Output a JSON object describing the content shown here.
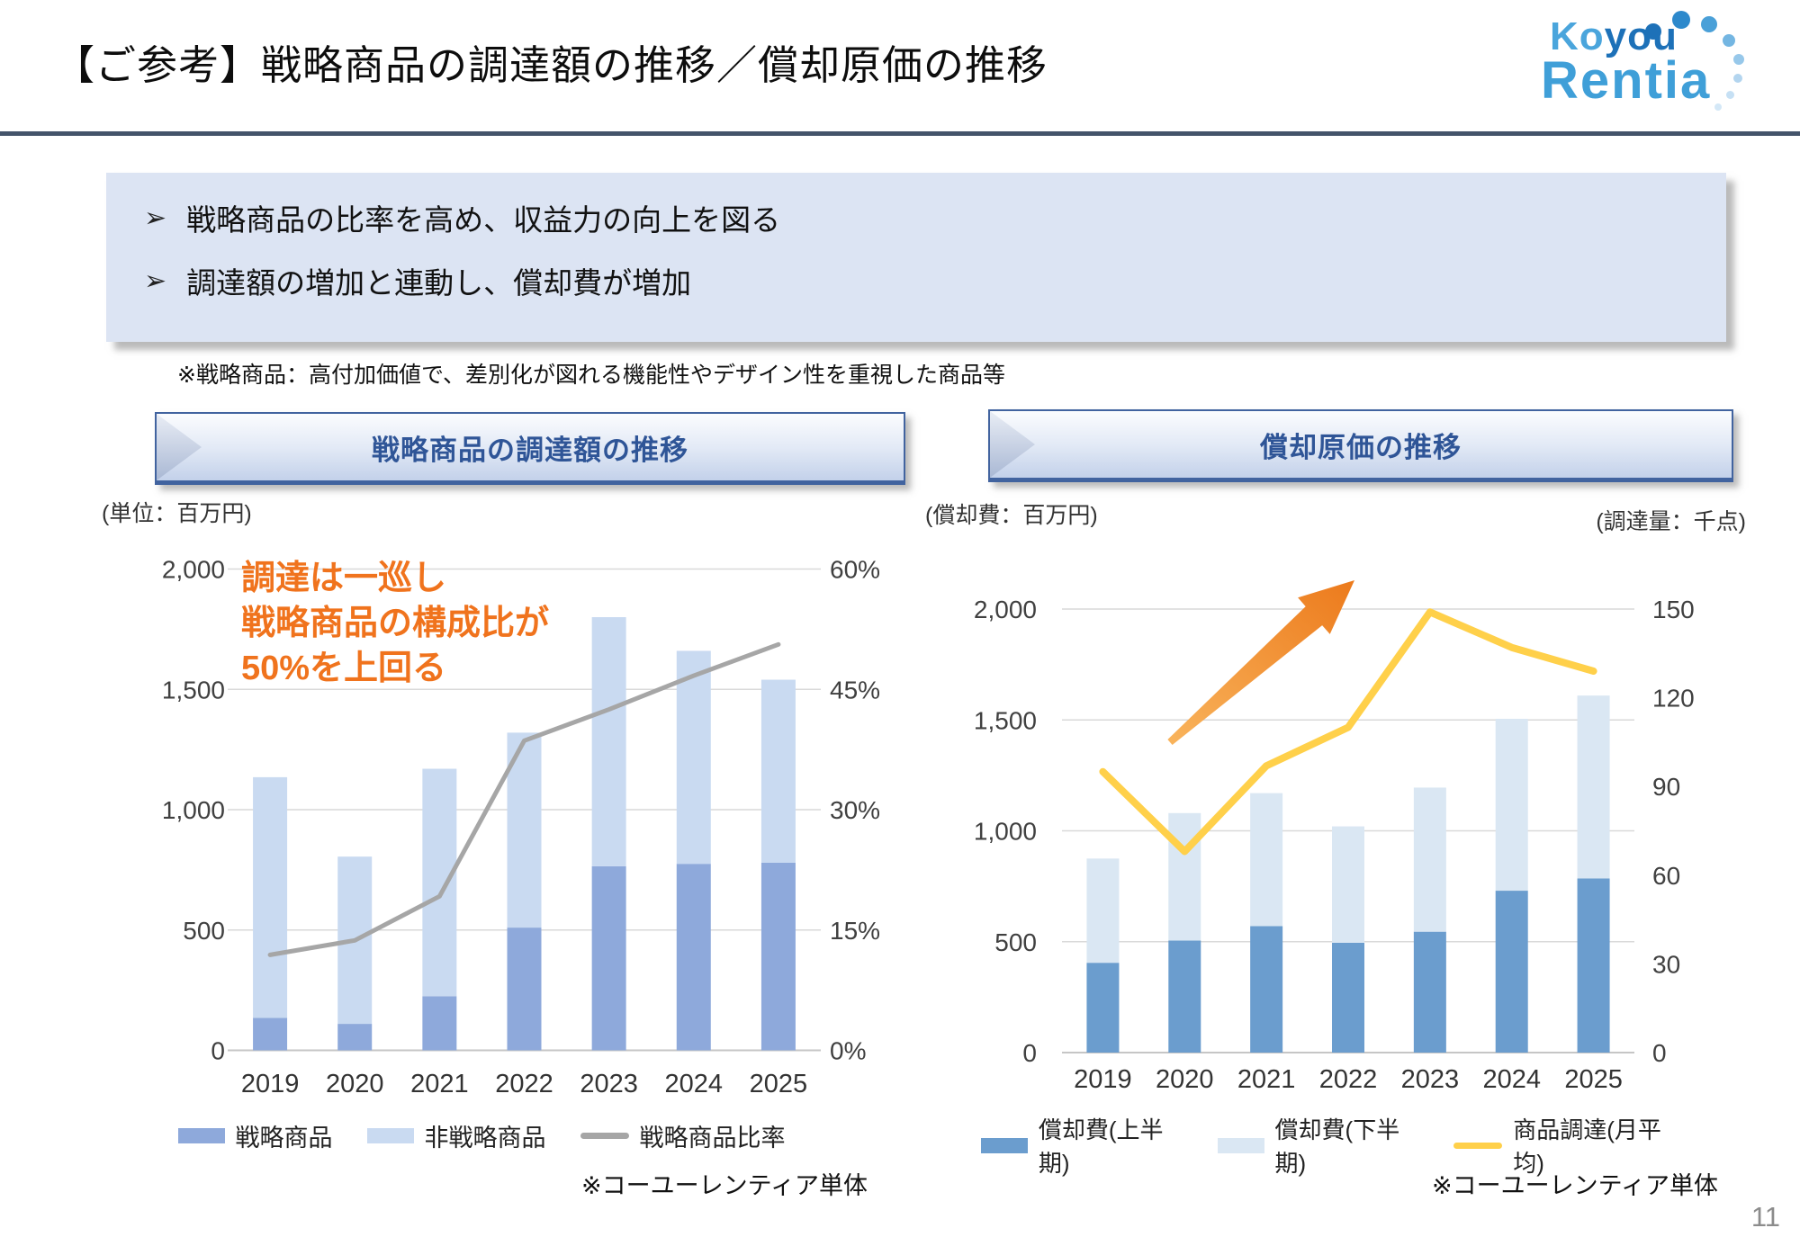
{
  "page": {
    "title": "【ご参考】戦略商品の調達額の推移／償却原価の推移",
    "page_number": "11"
  },
  "logo": {
    "line1_a": "Ko",
    "line1_b": "you",
    "line2": "Rentia"
  },
  "callout": {
    "bullet_glyph": "➢",
    "bullets": [
      "戦略商品の比率を高め、収益力の向上を図る",
      "調達額の増加と連動し、償却費が増加"
    ]
  },
  "note": "※戦略商品：高付加価値で、差別化が図れる機能性やデザイン性を重視した商品等",
  "left_section": {
    "header": "戦略商品の調達額の推移",
    "unit_label": "(単位：百万円)",
    "annotation": "調達は一巡し\n戦略商品の構成比が\n50%を上回る",
    "footnote": "※コーユーレンティア単体"
  },
  "right_section": {
    "header": "償却原価の推移",
    "unit_label_left": "(償却費：百万円)",
    "unit_label_right": "(調達量：千点)",
    "footnote": "※コーユーレンティア単体"
  },
  "colors": {
    "accent_rule": "#44546a",
    "band_text": "#2f5597",
    "callout_bg": "#dce4f3",
    "annotation_orange": "#f0731d",
    "arrow_orange_light": "#f9b45c",
    "arrow_orange_dark": "#ec7a1c",
    "strategic_bar": "#8ea9db",
    "non_strategic_bar": "#c9daf1",
    "ratio_line": "#a6a6a6",
    "dep_h1_bar": "#6b9dce",
    "dep_h2_bar": "#dae7f3",
    "procurement_line": "#ffd04a",
    "gridline": "#d9d9d9",
    "logo_light_blue": "#4aa5dc",
    "logo_dark_blue": "#1d71b8"
  },
  "chart_data": [
    {
      "type": "bar",
      "title": "戦略商品の調達額の推移",
      "unit": "百万円",
      "categories": [
        "2019",
        "2020",
        "2021",
        "2022",
        "2023",
        "2024",
        "2025"
      ],
      "series": [
        {
          "name": "戦略商品",
          "kind": "bar",
          "color": "#8ea9db",
          "values": [
            135,
            110,
            225,
            510,
            765,
            775,
            780
          ]
        },
        {
          "name": "非戦略商品",
          "kind": "bar",
          "color": "#c9daf1",
          "values": [
            1000,
            695,
            945,
            810,
            1035,
            885,
            760
          ]
        },
        {
          "name": "戦略商品比率",
          "kind": "line",
          "axis": "right",
          "color": "#a6a6a6",
          "values": [
            11.9,
            13.7,
            19.2,
            38.6,
            42.5,
            46.7,
            50.6
          ]
        }
      ],
      "left_axis": {
        "max": 2000,
        "ticks": [
          {
            "v": 2000,
            "label": "2,000"
          },
          {
            "v": 1500,
            "label": "1,500"
          },
          {
            "v": 1000,
            "label": "1,000"
          },
          {
            "v": 500,
            "label": "500"
          },
          {
            "v": 0,
            "label": "0"
          }
        ]
      },
      "right_axis": {
        "max": 60,
        "ticks": [
          {
            "v": 60,
            "label": "60%"
          },
          {
            "v": 45,
            "label": "45%"
          },
          {
            "v": 30,
            "label": "30%"
          },
          {
            "v": 15,
            "label": "15%"
          },
          {
            "v": 0,
            "label": "0%"
          }
        ]
      },
      "grid": true,
      "legend_position": "bottom"
    },
    {
      "type": "bar",
      "title": "償却原価の推移",
      "unit_left": "百万円",
      "unit_right": "千点",
      "categories": [
        "2019",
        "2020",
        "2021",
        "2022",
        "2023",
        "2024",
        "2025"
      ],
      "series": [
        {
          "name": "償却費(上半期)",
          "kind": "bar",
          "color": "#6b9dce",
          "values": [
            405,
            505,
            570,
            495,
            545,
            730,
            785
          ]
        },
        {
          "name": "償却費(下半期)",
          "kind": "bar",
          "color": "#dae7f3",
          "values": [
            470,
            575,
            600,
            525,
            650,
            775,
            825
          ]
        },
        {
          "name": "商品調達(月平均)",
          "kind": "line",
          "axis": "right",
          "color": "#ffd04a",
          "values": [
            95,
            68,
            97,
            110,
            149,
            137,
            129
          ]
        }
      ],
      "left_axis": {
        "max": 2000,
        "ticks": [
          {
            "v": 2000,
            "label": "2,000"
          },
          {
            "v": 1500,
            "label": "1,500"
          },
          {
            "v": 1000,
            "label": "1,000"
          },
          {
            "v": 500,
            "label": "500"
          },
          {
            "v": 0,
            "label": "0"
          }
        ]
      },
      "right_axis": {
        "max": 150,
        "ticks": [
          {
            "v": 150,
            "label": "150"
          },
          {
            "v": 120,
            "label": "120"
          },
          {
            "v": 90,
            "label": "90"
          },
          {
            "v": 60,
            "label": "60"
          },
          {
            "v": 30,
            "label": "30"
          },
          {
            "v": 0,
            "label": "0"
          }
        ]
      },
      "grid": true,
      "legend_position": "bottom"
    }
  ]
}
